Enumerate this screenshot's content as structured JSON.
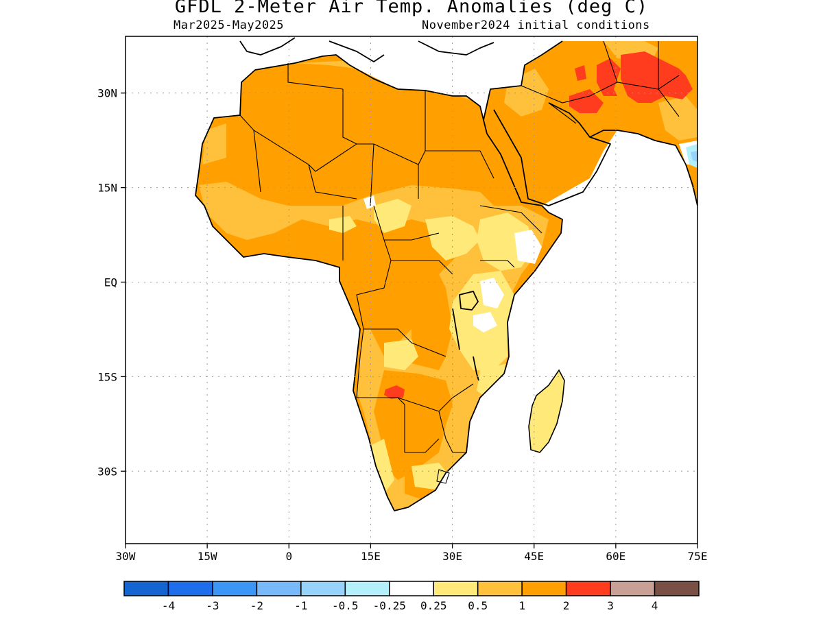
{
  "title": "GFDL 2-Meter Air Temp. Anomalies (deg C)",
  "subtitle_left": "Mar2025-May2025",
  "subtitle_right": "November2024 initial conditions",
  "map": {
    "lon_range": [
      -30,
      75
    ],
    "lat_range": [
      -41.5,
      39
    ],
    "lon_ticks": [
      {
        "label": "30W",
        "lon": -30
      },
      {
        "label": "15W",
        "lon": -15
      },
      {
        "label": "0",
        "lon": 0
      },
      {
        "label": "15E",
        "lon": 15
      },
      {
        "label": "30E",
        "lon": 30
      },
      {
        "label": "45E",
        "lon": 45
      },
      {
        "label": "60E",
        "lon": 60
      },
      {
        "label": "75E",
        "lon": 75
      }
    ],
    "lat_ticks": [
      {
        "label": "30N",
        "lat": 30
      },
      {
        "label": "15N",
        "lat": 15
      },
      {
        "label": "EQ",
        "lat": 0
      },
      {
        "label": "15S",
        "lat": -15
      },
      {
        "label": "30S",
        "lat": -30
      }
    ],
    "grid": true
  },
  "colorbar": {
    "colors": [
      "#1464d2",
      "#1e6eeb",
      "#3c96f5",
      "#78b9fa",
      "#96d2fa",
      "#b4f0fa",
      "#ffffff",
      "#ffe978",
      "#ffc03c",
      "#ffa000",
      "#ff3c1e",
      "#c8a096",
      "#7a5044"
    ],
    "labels": [
      "-4",
      "-3",
      "-2",
      "-1",
      "-0.5",
      "-0.25",
      "0.25",
      "0.5",
      "1",
      "2",
      "3",
      "4"
    ]
  }
}
